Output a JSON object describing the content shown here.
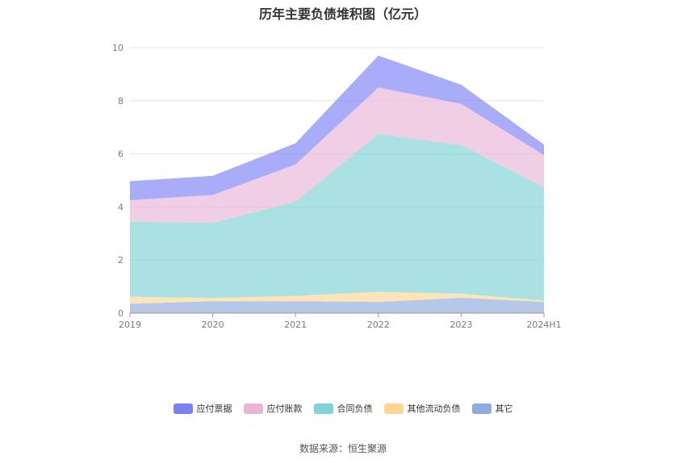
{
  "chart_data": {
    "type": "area",
    "stacked": true,
    "title": "历年主要负债堆积图（亿元）",
    "categories": [
      "2019",
      "2020",
      "2021",
      "2022",
      "2023",
      "2024H1"
    ],
    "ylim": [
      0,
      10
    ],
    "yticks": [
      "0",
      "2",
      "4",
      "6",
      "8",
      "10"
    ],
    "grid": true,
    "legend_position": "bottom",
    "series": [
      {
        "name": "其它",
        "color": "#8faadc",
        "values": [
          0.35,
          0.45,
          0.45,
          0.42,
          0.58,
          0.42
        ]
      },
      {
        "name": "其他流动负债",
        "color": "#ffd591",
        "values": [
          0.27,
          0.12,
          0.2,
          0.38,
          0.15,
          0.05
        ]
      },
      {
        "name": "合同负债",
        "color": "#7dd3d6",
        "values": [
          2.83,
          2.83,
          3.55,
          5.95,
          5.6,
          4.28
        ]
      },
      {
        "name": "应付账款",
        "color": "#e8b4d8",
        "values": [
          0.8,
          1.05,
          1.4,
          1.75,
          1.55,
          1.2
        ]
      },
      {
        "name": "应付票据",
        "color": "#7b7ff5",
        "values": [
          0.72,
          0.72,
          0.8,
          1.2,
          0.72,
          0.4
        ]
      }
    ]
  },
  "legend": [
    "应付票据",
    "应付账款",
    "合同负债",
    "其他流动负债",
    "其它"
  ],
  "source": "数据来源：恒生聚源"
}
